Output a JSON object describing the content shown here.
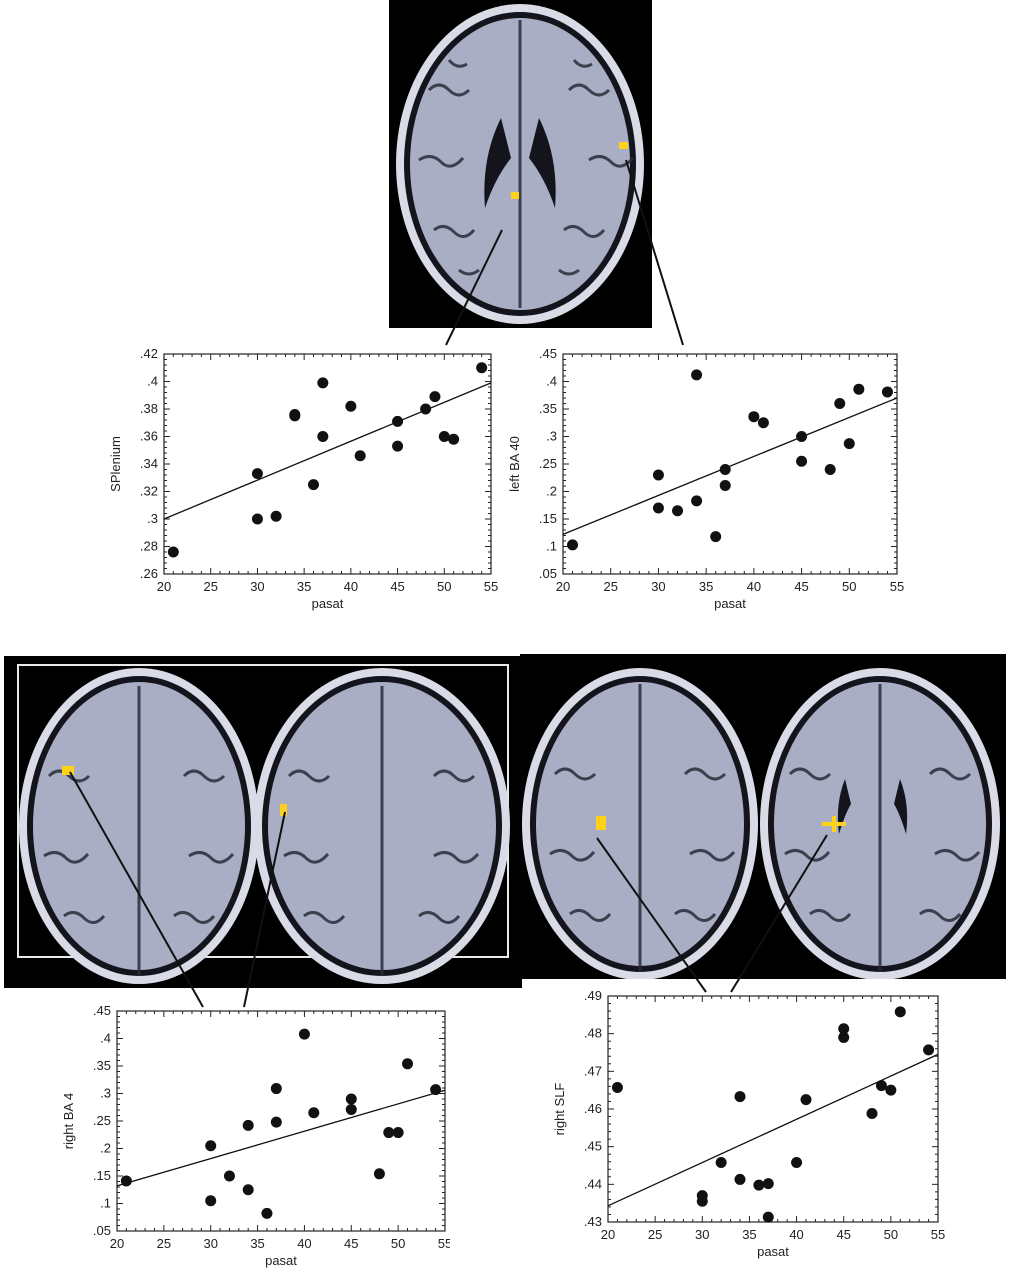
{
  "colors": {
    "brain_bg": "#000000",
    "brain_tissue": "#a9aec4",
    "brain_sulci": "#2a2c3a",
    "scalp": "#d9dbe6",
    "highlight": "#ffd21a",
    "marker": "#111111"
  },
  "images": [
    {
      "name": "axial-slice-top",
      "description_icon": "brain-mri-icon"
    },
    {
      "name": "axial-slice-bottom-left-a",
      "description_icon": "brain-mri-icon"
    },
    {
      "name": "axial-slice-bottom-left-b",
      "description_icon": "brain-mri-icon"
    },
    {
      "name": "axial-slice-bottom-right-a",
      "description_icon": "brain-mri-icon"
    },
    {
      "name": "axial-slice-bottom-right-b",
      "description_icon": "brain-mri-icon"
    }
  ],
  "chart_data": [
    {
      "type": "scatter",
      "xlabel": "pasat",
      "ylabel": "SPlenium",
      "xlim": [
        20,
        55
      ],
      "ylim": [
        0.26,
        0.42
      ],
      "xticks": [
        20,
        25,
        30,
        35,
        40,
        45,
        50,
        55
      ],
      "xtick_labels": [
        "20",
        "25",
        "30",
        "35",
        "40",
        "45",
        "50",
        "55"
      ],
      "yticks": [
        0.26,
        0.28,
        0.3,
        0.32,
        0.34,
        0.36,
        0.38,
        0.4,
        0.42
      ],
      "ytick_labels": [
        ".26",
        ".28",
        ".3",
        ".32",
        ".34",
        ".36",
        ".38",
        ".4",
        ".42"
      ],
      "points": [
        [
          21,
          0.276
        ],
        [
          30,
          0.333
        ],
        [
          30,
          0.3
        ],
        [
          32,
          0.302
        ],
        [
          34,
          0.375
        ],
        [
          34,
          0.376
        ],
        [
          36,
          0.325
        ],
        [
          37,
          0.399
        ],
        [
          37,
          0.36
        ],
        [
          40,
          0.382
        ],
        [
          41,
          0.346
        ],
        [
          45,
          0.371
        ],
        [
          45,
          0.353
        ],
        [
          48,
          0.38
        ],
        [
          49,
          0.389
        ],
        [
          50,
          0.36
        ],
        [
          51,
          0.358
        ],
        [
          54,
          0.41
        ]
      ],
      "fit_line": [
        [
          20,
          0.3
        ],
        [
          55,
          0.399
        ]
      ]
    },
    {
      "type": "scatter",
      "xlabel": "pasat",
      "ylabel": "left BA 40",
      "xlim": [
        20,
        55
      ],
      "ylim": [
        0.05,
        0.45
      ],
      "xticks": [
        20,
        25,
        30,
        35,
        40,
        45,
        50,
        55
      ],
      "xtick_labels": [
        "20",
        "25",
        "30",
        "35",
        "40",
        "45",
        "50",
        "55"
      ],
      "yticks": [
        0.05,
        0.1,
        0.15,
        0.2,
        0.25,
        0.3,
        0.35,
        0.4,
        0.45
      ],
      "ytick_labels": [
        ".05",
        ".1",
        ".15",
        ".2",
        ".25",
        ".3",
        ".35",
        ".4",
        ".45"
      ],
      "points": [
        [
          21,
          0.103
        ],
        [
          30,
          0.23
        ],
        [
          30,
          0.17
        ],
        [
          32,
          0.165
        ],
        [
          34,
          0.412
        ],
        [
          34,
          0.183
        ],
        [
          36,
          0.118
        ],
        [
          37,
          0.24
        ],
        [
          37,
          0.211
        ],
        [
          40,
          0.336
        ],
        [
          41,
          0.325
        ],
        [
          45,
          0.3
        ],
        [
          45,
          0.255
        ],
        [
          48,
          0.24
        ],
        [
          49,
          0.36
        ],
        [
          50,
          0.287
        ],
        [
          51,
          0.386
        ],
        [
          54,
          0.381
        ]
      ],
      "fit_line": [
        [
          20,
          0.122
        ],
        [
          55,
          0.37
        ]
      ]
    },
    {
      "type": "scatter",
      "xlabel": "pasat",
      "ylabel": "right BA 4",
      "xlim": [
        20,
        55
      ],
      "ylim": [
        0.05,
        0.45
      ],
      "xticks": [
        20,
        25,
        30,
        35,
        40,
        45,
        50,
        55
      ],
      "xtick_labels": [
        "20",
        "25",
        "30",
        "35",
        "40",
        "45",
        "50",
        "55"
      ],
      "yticks": [
        0.05,
        0.1,
        0.15,
        0.2,
        0.25,
        0.3,
        0.35,
        0.4,
        0.45
      ],
      "ytick_labels": [
        ".05",
        ".1",
        ".15",
        ".2",
        ".25",
        ".3",
        ".35",
        ".4",
        ".45"
      ],
      "points": [
        [
          21,
          0.141
        ],
        [
          30,
          0.205
        ],
        [
          30,
          0.105
        ],
        [
          32,
          0.15
        ],
        [
          34,
          0.242
        ],
        [
          34,
          0.125
        ],
        [
          36,
          0.082
        ],
        [
          37,
          0.309
        ],
        [
          37,
          0.248
        ],
        [
          40,
          0.408
        ],
        [
          41,
          0.265
        ],
        [
          45,
          0.29
        ],
        [
          45,
          0.271
        ],
        [
          48,
          0.154
        ],
        [
          49,
          0.229
        ],
        [
          50,
          0.229
        ],
        [
          51,
          0.354
        ],
        [
          54,
          0.307
        ]
      ],
      "fit_line": [
        [
          20,
          0.132
        ],
        [
          55,
          0.306
        ]
      ]
    },
    {
      "type": "scatter",
      "xlabel": "pasat",
      "ylabel": "right SLF",
      "xlim": [
        20,
        55
      ],
      "ylim": [
        0.43,
        0.49
      ],
      "xticks": [
        20,
        25,
        30,
        35,
        40,
        45,
        50,
        55
      ],
      "xtick_labels": [
        "20",
        "25",
        "30",
        "35",
        "40",
        "45",
        "50",
        "55"
      ],
      "yticks": [
        0.43,
        0.44,
        0.45,
        0.46,
        0.47,
        0.48,
        0.49
      ],
      "ytick_labels": [
        ".43",
        ".44",
        ".45",
        ".46",
        ".47",
        ".48",
        ".49"
      ],
      "points": [
        [
          21,
          0.4657
        ],
        [
          30,
          0.437
        ],
        [
          30,
          0.4355
        ],
        [
          32,
          0.4458
        ],
        [
          34,
          0.4633
        ],
        [
          34,
          0.4413
        ],
        [
          36,
          0.4398
        ],
        [
          37,
          0.4402
        ],
        [
          37,
          0.4313
        ],
        [
          40,
          0.4458
        ],
        [
          41,
          0.4625
        ],
        [
          45,
          0.4813
        ],
        [
          45,
          0.479
        ],
        [
          48,
          0.4588
        ],
        [
          49,
          0.4662
        ],
        [
          50,
          0.465
        ],
        [
          51,
          0.4858
        ],
        [
          54,
          0.4757
        ]
      ],
      "fit_line": [
        [
          20,
          0.4343
        ],
        [
          55,
          0.4745
        ]
      ]
    }
  ]
}
